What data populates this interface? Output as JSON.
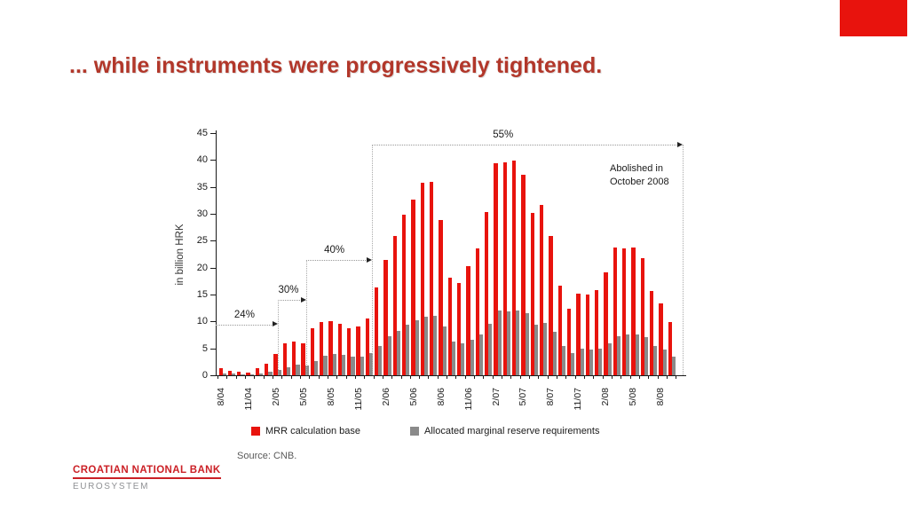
{
  "slide": {
    "title": "... while instruments were progressively tightened.",
    "title_color": "#b2372a",
    "accent_color": "#e8130d",
    "source": "Source: CNB.",
    "logo": {
      "bank": "CROATIAN NATIONAL BANK",
      "subtitle": "EUROSYSTEM"
    }
  },
  "chart_data": {
    "type": "bar",
    "title": "",
    "xlabel": "",
    "ylabel": "in billion HRK",
    "ylim": [
      0,
      45
    ],
    "yticks": [
      0,
      5,
      10,
      15,
      20,
      25,
      30,
      35,
      40,
      45
    ],
    "grid": false,
    "legend_position": "bottom",
    "categories": [
      "8/04",
      "9/04",
      "10/04",
      "11/04",
      "12/04",
      "1/05",
      "2/05",
      "3/05",
      "4/05",
      "5/05",
      "6/05",
      "7/05",
      "8/05",
      "9/05",
      "10/05",
      "11/05",
      "12/05",
      "1/06",
      "2/06",
      "3/06",
      "4/06",
      "5/06",
      "6/06",
      "7/06",
      "8/06",
      "9/06",
      "10/06",
      "11/06",
      "12/06",
      "1/07",
      "2/07",
      "3/07",
      "4/07",
      "5/07",
      "6/07",
      "7/07",
      "8/07",
      "9/07",
      "10/07",
      "11/07",
      "12/07",
      "1/08",
      "2/08",
      "3/08",
      "4/08",
      "5/08",
      "6/08",
      "7/08",
      "8/08",
      "9/08"
    ],
    "xtick_label_every": 3,
    "xtick_labels_shown": [
      "8/04",
      "11/04",
      "2/05",
      "5/05",
      "8/05",
      "11/05",
      "2/06",
      "5/06",
      "8/06",
      "11/06",
      "2/07",
      "5/07",
      "8/07",
      "11/07",
      "2/08",
      "5/08",
      "8/08"
    ],
    "series": [
      {
        "name": "MRR calculation base",
        "color": "#e8130d",
        "values": [
          1.3,
          0.9,
          0.7,
          0.5,
          1.4,
          2.1,
          3.9,
          6.0,
          6.2,
          5.9,
          8.8,
          9.9,
          10.1,
          9.5,
          8.8,
          9.1,
          10.5,
          16.4,
          21.5,
          25.9,
          29.9,
          32.6,
          35.7,
          35.9,
          28.8,
          18.1,
          17.2,
          20.3,
          23.6,
          30.4,
          39.4,
          39.5,
          39.9,
          37.2,
          30.2,
          31.6,
          25.9,
          16.7,
          12.3,
          15.2,
          15.0,
          15.9,
          19.2,
          23.8,
          23.6,
          23.7,
          21.7,
          15.6,
          13.4,
          9.9
        ]
      },
      {
        "name": "Allocated marginal reserve requirements",
        "color": "#8a8a8a",
        "values": [
          0.3,
          0.3,
          0.2,
          0.2,
          0.4,
          0.6,
          1.0,
          1.5,
          1.9,
          1.8,
          2.6,
          3.7,
          4.0,
          3.8,
          3.5,
          3.5,
          4.2,
          5.5,
          7.2,
          8.3,
          9.4,
          10.2,
          10.8,
          11.1,
          9.1,
          6.3,
          5.9,
          6.6,
          7.6,
          9.6,
          12.0,
          11.9,
          12.1,
          11.5,
          9.4,
          9.8,
          8.0,
          5.5,
          4.1,
          4.9,
          4.8,
          5.0,
          6.0,
          7.2,
          7.5,
          7.5,
          7.1,
          5.4,
          4.8,
          3.5
        ]
      }
    ],
    "annotations": {
      "rate_steps": [
        {
          "label": "24%",
          "from_month": -0.3,
          "to_month": 6.4,
          "level": 9.4,
          "label_at_month": 2.8
        },
        {
          "label": "30%",
          "from_month": 6.4,
          "to_month": 9.5,
          "level": 14.0,
          "label_at_month": 7.6
        },
        {
          "label": "40%",
          "from_month": 9.5,
          "to_month": 16.7,
          "level": 21.4,
          "label_at_month": 12.6
        },
        {
          "label": "55%",
          "from_month": 16.7,
          "to_month": 50.6,
          "level": 42.8,
          "label_at_month": 31.0
        }
      ],
      "boundary_drops": [
        {
          "month": 6.4,
          "top_level": 14.0
        },
        {
          "month": 9.5,
          "top_level": 21.4
        },
        {
          "month": 16.7,
          "top_level": 42.8
        },
        {
          "month": 50.6,
          "top_level": 42.8
        }
      ],
      "note": {
        "lines": [
          "Abolished in",
          "October 2008"
        ]
      }
    }
  }
}
